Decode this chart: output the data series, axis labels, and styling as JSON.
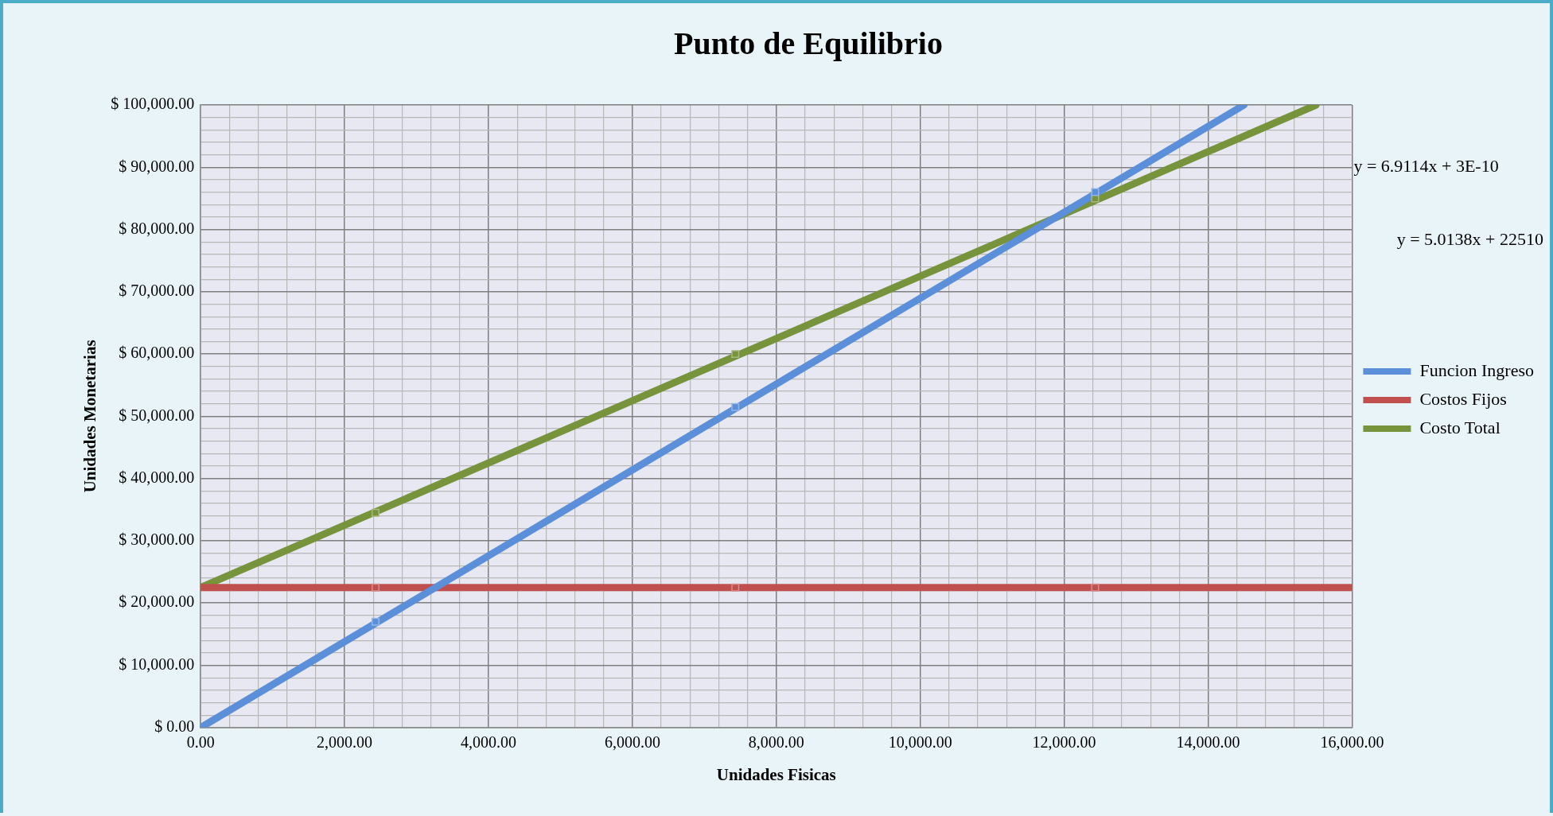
{
  "chart_data": {
    "type": "line",
    "title": "Punto de Equilibrio",
    "xlabel": "Unidades Fisicas",
    "ylabel": "Unidades Monetarias",
    "xlim": [
      0,
      16000
    ],
    "xticks": [
      {
        "value": 0,
        "label": "0.00"
      },
      {
        "value": 400,
        "label": null
      },
      {
        "value": 800,
        "label": null
      },
      {
        "value": 1200,
        "label": null
      },
      {
        "value": 1600,
        "label": null
      },
      {
        "value": 2000,
        "label": "2,000.00"
      },
      {
        "value": 2400,
        "label": null
      },
      {
        "value": 2800,
        "label": null
      },
      {
        "value": 3200,
        "label": null
      },
      {
        "value": 3600,
        "label": null
      },
      {
        "value": 4000,
        "label": "4,000.00"
      },
      {
        "value": 4400,
        "label": null
      },
      {
        "value": 4800,
        "label": null
      },
      {
        "value": 5200,
        "label": null
      },
      {
        "value": 5600,
        "label": null
      },
      {
        "value": 6000,
        "label": "6,000.00"
      },
      {
        "value": 6400,
        "label": null
      },
      {
        "value": 6800,
        "label": null
      },
      {
        "value": 7200,
        "label": null
      },
      {
        "value": 7600,
        "label": null
      },
      {
        "value": 8000,
        "label": "8,000.00"
      },
      {
        "value": 8400,
        "label": null
      },
      {
        "value": 8800,
        "label": null
      },
      {
        "value": 9200,
        "label": null
      },
      {
        "value": 9600,
        "label": null
      },
      {
        "value": 10000,
        "label": "10,000.00"
      },
      {
        "value": 10400,
        "label": null
      },
      {
        "value": 10800,
        "label": null
      },
      {
        "value": 11200,
        "label": null
      },
      {
        "value": 11600,
        "label": null
      },
      {
        "value": 12000,
        "label": "12,000.00"
      },
      {
        "value": 12400,
        "label": null
      },
      {
        "value": 12800,
        "label": null
      },
      {
        "value": 13200,
        "label": null
      },
      {
        "value": 13600,
        "label": null
      },
      {
        "value": 14000,
        "label": "14,000.00"
      },
      {
        "value": 14400,
        "label": null
      },
      {
        "value": 14800,
        "label": null
      },
      {
        "value": 15200,
        "label": null
      },
      {
        "value": 15600,
        "label": null
      },
      {
        "value": 16000,
        "label": "16,000.00"
      }
    ],
    "ylim": [
      0,
      100000
    ],
    "yticks": [
      {
        "value": 0,
        "label": "$ 0.00"
      },
      {
        "value": 2000,
        "label": null
      },
      {
        "value": 4000,
        "label": null
      },
      {
        "value": 6000,
        "label": null
      },
      {
        "value": 8000,
        "label": null
      },
      {
        "value": 10000,
        "label": "$ 10,000.00"
      },
      {
        "value": 12000,
        "label": null
      },
      {
        "value": 14000,
        "label": null
      },
      {
        "value": 16000,
        "label": null
      },
      {
        "value": 18000,
        "label": null
      },
      {
        "value": 20000,
        "label": "$ 20,000.00"
      },
      {
        "value": 22000,
        "label": null
      },
      {
        "value": 24000,
        "label": null
      },
      {
        "value": 26000,
        "label": null
      },
      {
        "value": 28000,
        "label": null
      },
      {
        "value": 30000,
        "label": "$ 30,000.00"
      },
      {
        "value": 32000,
        "label": null
      },
      {
        "value": 34000,
        "label": null
      },
      {
        "value": 36000,
        "label": null
      },
      {
        "value": 38000,
        "label": null
      },
      {
        "value": 40000,
        "label": "$ 40,000.00"
      },
      {
        "value": 42000,
        "label": null
      },
      {
        "value": 44000,
        "label": null
      },
      {
        "value": 46000,
        "label": null
      },
      {
        "value": 48000,
        "label": null
      },
      {
        "value": 50000,
        "label": "$ 50,000.00"
      },
      {
        "value": 52000,
        "label": null
      },
      {
        "value": 54000,
        "label": null
      },
      {
        "value": 56000,
        "label": null
      },
      {
        "value": 58000,
        "label": null
      },
      {
        "value": 60000,
        "label": "$ 60,000.00"
      },
      {
        "value": 62000,
        "label": null
      },
      {
        "value": 64000,
        "label": null
      },
      {
        "value": 66000,
        "label": null
      },
      {
        "value": 68000,
        "label": null
      },
      {
        "value": 70000,
        "label": "$ 70,000.00"
      },
      {
        "value": 72000,
        "label": null
      },
      {
        "value": 74000,
        "label": null
      },
      {
        "value": 76000,
        "label": null
      },
      {
        "value": 78000,
        "label": null
      },
      {
        "value": 80000,
        "label": "$ 80,000.00"
      },
      {
        "value": 82000,
        "label": null
      },
      {
        "value": 84000,
        "label": null
      },
      {
        "value": 86000,
        "label": null
      },
      {
        "value": 88000,
        "label": null
      },
      {
        "value": 90000,
        "label": "$ 90,000.00"
      },
      {
        "value": 92000,
        "label": null
      },
      {
        "value": 94000,
        "label": null
      },
      {
        "value": 96000,
        "label": null
      },
      {
        "value": 98000,
        "label": null
      },
      {
        "value": 100000,
        "label": "$ 100,000.00"
      }
    ],
    "grid": true,
    "legend": "right",
    "marker": "square",
    "line_style": "solid",
    "series": [
      {
        "name": "Funcion Ingreso",
        "type": "scatter",
        "color": "#5b8fd9",
        "x": [
          2430,
          7430,
          12430
        ],
        "values": [
          17000,
          51500,
          86000
        ]
      },
      {
        "name": "Costos Fijos",
        "type": "scatter",
        "color": "#c0504d",
        "x": [
          2430,
          7430,
          12430
        ],
        "values": [
          22500,
          22500,
          22500
        ]
      },
      {
        "name": "Costo Total",
        "type": "scatter",
        "color": "#77933c",
        "x": [
          2430,
          7430,
          12430
        ],
        "values": [
          34500,
          60000,
          85000
        ]
      },
      {
        "type": "line",
        "marker": "none",
        "color": "#5b8fd9",
        "x": [
          0,
          14500
        ],
        "values": [
          0,
          100000
        ]
      },
      {
        "type": "line",
        "marker": "none",
        "color": "#c0504d",
        "x": [
          0,
          16000
        ],
        "values": [
          22500,
          22500
        ]
      },
      {
        "type": "line",
        "marker": "none",
        "color": "#77933c",
        "x": [
          0,
          15500
        ],
        "values": [
          22500,
          100000
        ]
      }
    ],
    "annotations": [
      "y = 6.9114x + 3E-10",
      "y = 5.0138x + 22510"
    ]
  }
}
